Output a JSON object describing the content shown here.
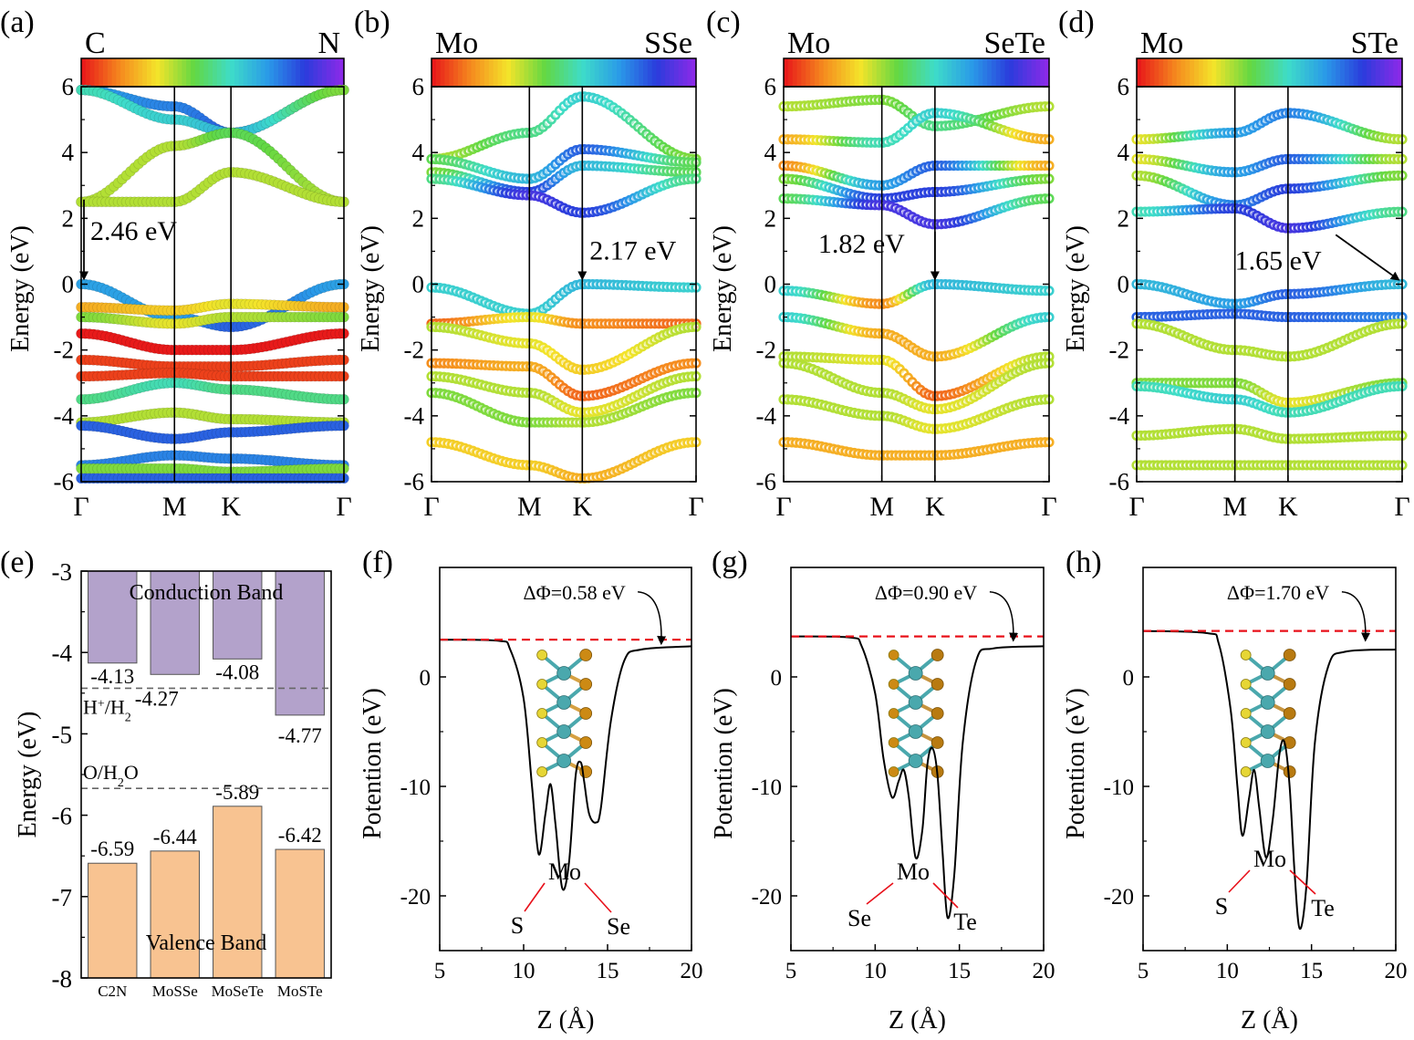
{
  "colors": {
    "axis": "#000000",
    "conduction_bar": "#b3a2cb",
    "valence_bar": "#f8c391",
    "reference_line": "#666666",
    "vacuum_line": "#e8101a",
    "atom_label": "#e8101a",
    "curve": "#000000",
    "mo_atom": "#4aa8ad",
    "s_atom": "#e6d635",
    "se_atom": "#cc8a14",
    "te_atom": "#b87a10"
  },
  "colorbar_stops": [
    "#e81a1a",
    "#f58a1e",
    "#f4e42a",
    "#62d843",
    "#3edcc9",
    "#2a9ae8",
    "#2a3cdc",
    "#8a2ae8"
  ],
  "band_panels": [
    {
      "panel_label": "(a)",
      "colorbar_left": "C",
      "colorbar_right": "N",
      "ylabel": "Energy (eV)",
      "ylim": [
        -6,
        6
      ],
      "yticks": [
        "6",
        "4",
        "2",
        "0",
        "-2",
        "-4",
        "-6"
      ],
      "kpoints": [
        "Γ",
        "M",
        "K",
        "Γ"
      ],
      "kpos": [
        0,
        0.355,
        0.57,
        1.0
      ],
      "gap_label": "2.46 eV",
      "gap_eV": 2.46,
      "marker_style": "filled",
      "bands": [
        {
          "e": [
            5.9,
            5.4,
            4.6,
            5.9
          ],
          "c": [
            0.7,
            0.75,
            0.8,
            0.4
          ]
        },
        {
          "e": [
            5.9,
            5.0,
            4.6,
            5.9
          ],
          "c": [
            0.55,
            0.6,
            0.65,
            0.4
          ]
        },
        {
          "e": [
            2.5,
            4.2,
            4.6,
            2.5
          ],
          "c": [
            0.35,
            0.35,
            0.45,
            0.35
          ]
        },
        {
          "e": [
            2.5,
            2.5,
            3.4,
            2.5
          ],
          "c": [
            0.35,
            0.35,
            0.35,
            0.35
          ]
        },
        {
          "e": [
            0.0,
            -1.0,
            -1.3,
            0.0
          ],
          "c": [
            0.7,
            0.7,
            0.8,
            0.7
          ]
        },
        {
          "e": [
            -0.7,
            -0.8,
            -0.6,
            -0.7
          ],
          "c": [
            0.2,
            0.25,
            0.3,
            0.2
          ]
        },
        {
          "e": [
            -1.0,
            -1.2,
            -1.0,
            -1.0
          ],
          "c": [
            0.4,
            0.3,
            0.35,
            0.4
          ]
        },
        {
          "e": [
            -1.5,
            -2.0,
            -2.0,
            -1.5
          ],
          "c": [
            0.0,
            0.0,
            0.0,
            0.0
          ]
        },
        {
          "e": [
            -2.3,
            -2.5,
            -2.5,
            -2.3
          ],
          "c": [
            0.05,
            0.05,
            0.05,
            0.05
          ]
        },
        {
          "e": [
            -2.8,
            -2.7,
            -2.8,
            -2.8
          ],
          "c": [
            0.05,
            0.05,
            0.05,
            0.05
          ]
        },
        {
          "e": [
            -3.5,
            -3.0,
            -3.2,
            -3.5
          ],
          "c": [
            0.5,
            0.55,
            0.5,
            0.5
          ]
        },
        {
          "e": [
            -4.2,
            -3.9,
            -4.1,
            -4.2
          ],
          "c": [
            0.35,
            0.35,
            0.35,
            0.35
          ]
        },
        {
          "e": [
            -4.3,
            -4.7,
            -4.5,
            -4.3
          ],
          "c": [
            0.8,
            0.8,
            0.8,
            0.8
          ]
        },
        {
          "e": [
            -5.5,
            -5.2,
            -5.3,
            -5.5
          ],
          "c": [
            0.75,
            0.75,
            0.75,
            0.75
          ]
        },
        {
          "e": [
            -5.6,
            -5.6,
            -5.7,
            -5.6
          ],
          "c": [
            0.4,
            0.4,
            0.4,
            0.4
          ]
        },
        {
          "e": [
            -5.9,
            -5.9,
            -5.9,
            -5.9
          ],
          "c": [
            0.8,
            0.8,
            0.8,
            0.8
          ]
        }
      ]
    },
    {
      "panel_label": "(b)",
      "colorbar_left": "Mo",
      "colorbar_right": "SSe",
      "ylabel": "Energy (eV)",
      "ylim": [
        -6,
        6
      ],
      "yticks": [
        "6",
        "4",
        "2",
        "0",
        "-2",
        "-4",
        "-6"
      ],
      "kpoints": [
        "Γ",
        "M",
        "K",
        "Γ"
      ],
      "kpos": [
        0,
        0.37,
        0.57,
        1.0
      ],
      "gap_label": "2.17 eV",
      "gap_eV": 2.17,
      "marker_style": "ring",
      "bands": [
        {
          "e": [
            3.8,
            4.6,
            5.7,
            3.8
          ],
          "c": [
            0.35,
            0.5,
            0.6,
            0.4
          ]
        },
        {
          "e": [
            3.8,
            3.2,
            4.1,
            3.7
          ],
          "c": [
            0.45,
            0.65,
            0.8,
            0.45
          ]
        },
        {
          "e": [
            3.4,
            2.8,
            3.6,
            3.4
          ],
          "c": [
            0.4,
            0.85,
            0.65,
            0.45
          ]
        },
        {
          "e": [
            3.2,
            2.7,
            2.17,
            3.2
          ],
          "c": [
            0.5,
            0.9,
            0.85,
            0.5
          ]
        },
        {
          "e": [
            -0.1,
            -0.9,
            0.0,
            -0.1
          ],
          "c": [
            0.6,
            0.6,
            0.65,
            0.6
          ]
        },
        {
          "e": [
            -1.2,
            -1.0,
            -1.2,
            -1.2
          ],
          "c": [
            0.1,
            0.3,
            0.15,
            0.1
          ]
        },
        {
          "e": [
            -1.3,
            -1.8,
            -2.6,
            -1.3
          ],
          "c": [
            0.35,
            0.3,
            0.25,
            0.35
          ]
        },
        {
          "e": [
            -2.4,
            -2.5,
            -3.4,
            -2.4
          ],
          "c": [
            0.15,
            0.2,
            0.1,
            0.15
          ]
        },
        {
          "e": [
            -2.8,
            -3.3,
            -3.9,
            -2.8
          ],
          "c": [
            0.35,
            0.35,
            0.3,
            0.35
          ]
        },
        {
          "e": [
            -3.3,
            -4.2,
            -4.2,
            -3.3
          ],
          "c": [
            0.4,
            0.4,
            0.35,
            0.4
          ]
        },
        {
          "e": [
            -4.8,
            -5.5,
            -5.9,
            -4.8
          ],
          "c": [
            0.25,
            0.25,
            0.2,
            0.25
          ]
        }
      ]
    },
    {
      "panel_label": "(c)",
      "colorbar_left": "Mo",
      "colorbar_right": "SeTe",
      "ylabel": "Energy (eV)",
      "ylim": [
        -6,
        6
      ],
      "yticks": [
        "6",
        "4",
        "2",
        "0",
        "-2",
        "-4",
        "-6"
      ],
      "kpoints": [
        "Γ",
        "M",
        "K",
        "Γ"
      ],
      "kpos": [
        0,
        0.37,
        0.57,
        1.0
      ],
      "gap_label": "1.82 eV",
      "gap_eV": 1.82,
      "marker_style": "ring",
      "bands": [
        {
          "e": [
            5.4,
            5.6,
            4.8,
            5.4
          ],
          "c": [
            0.35,
            0.4,
            0.5,
            0.35
          ]
        },
        {
          "e": [
            4.4,
            4.3,
            5.2,
            4.4
          ],
          "c": [
            0.2,
            0.55,
            0.6,
            0.2
          ]
        },
        {
          "e": [
            3.6,
            3.0,
            3.6,
            3.6
          ],
          "c": [
            0.15,
            0.7,
            0.8,
            0.2
          ]
        },
        {
          "e": [
            3.2,
            2.6,
            2.8,
            3.2
          ],
          "c": [
            0.4,
            0.85,
            0.85,
            0.4
          ]
        },
        {
          "e": [
            2.6,
            2.4,
            1.82,
            2.6
          ],
          "c": [
            0.45,
            0.9,
            0.9,
            0.45
          ]
        },
        {
          "e": [
            -0.2,
            -0.6,
            0.0,
            -0.2
          ],
          "c": [
            0.6,
            0.15,
            0.65,
            0.6
          ]
        },
        {
          "e": [
            -1.0,
            -1.5,
            -2.2,
            -1.0
          ],
          "c": [
            0.6,
            0.2,
            0.2,
            0.6
          ]
        },
        {
          "e": [
            -2.2,
            -2.3,
            -3.4,
            -2.2
          ],
          "c": [
            0.35,
            0.3,
            0.1,
            0.35
          ]
        },
        {
          "e": [
            -2.4,
            -3.3,
            -3.8,
            -2.4
          ],
          "c": [
            0.35,
            0.35,
            0.3,
            0.35
          ]
        },
        {
          "e": [
            -3.5,
            -4.0,
            -4.4,
            -3.5
          ],
          "c": [
            0.35,
            0.35,
            0.3,
            0.35
          ]
        },
        {
          "e": [
            -4.8,
            -5.2,
            -5.2,
            -4.8
          ],
          "c": [
            0.2,
            0.2,
            0.2,
            0.2
          ]
        }
      ]
    },
    {
      "panel_label": "(d)",
      "colorbar_left": "Mo",
      "colorbar_right": "STe",
      "ylabel": "Energy (eV)",
      "ylim": [
        -6,
        6
      ],
      "yticks": [
        "6",
        "4",
        "2",
        "0",
        "-2",
        "-4",
        "-6"
      ],
      "kpoints": [
        "Γ",
        "M",
        "K",
        "Γ"
      ],
      "kpos": [
        0,
        0.37,
        0.57,
        1.0
      ],
      "gap_label": "1.65 eV",
      "gap_eV": 1.65,
      "marker_style": "ring",
      "bands": [
        {
          "e": [
            4.4,
            4.6,
            5.2,
            4.4
          ],
          "c": [
            0.3,
            0.7,
            0.75,
            0.35
          ]
        },
        {
          "e": [
            3.8,
            3.4,
            3.8,
            3.8
          ],
          "c": [
            0.3,
            0.7,
            0.8,
            0.35
          ]
        },
        {
          "e": [
            3.3,
            2.4,
            2.9,
            3.3
          ],
          "c": [
            0.35,
            0.75,
            0.85,
            0.4
          ]
        },
        {
          "e": [
            2.2,
            2.3,
            1.7,
            2.2
          ],
          "c": [
            0.55,
            0.85,
            0.9,
            0.5
          ]
        },
        {
          "e": [
            0.0,
            -0.6,
            -0.3,
            0.0
          ],
          "c": [
            0.65,
            0.7,
            0.8,
            0.65
          ]
        },
        {
          "e": [
            -1.0,
            -0.9,
            -1.0,
            -1.0
          ],
          "c": [
            0.8,
            0.8,
            0.8,
            0.75
          ]
        },
        {
          "e": [
            -1.2,
            -2.0,
            -2.2,
            -1.2
          ],
          "c": [
            0.35,
            0.35,
            0.35,
            0.35
          ]
        },
        {
          "e": [
            -3.0,
            -3.0,
            -3.6,
            -3.0
          ],
          "c": [
            0.4,
            0.4,
            0.3,
            0.4
          ]
        },
        {
          "e": [
            -3.1,
            -3.5,
            -3.9,
            -3.1
          ],
          "c": [
            0.55,
            0.6,
            0.55,
            0.55
          ]
        },
        {
          "e": [
            -4.6,
            -4.4,
            -4.7,
            -4.6
          ],
          "c": [
            0.35,
            0.35,
            0.35,
            0.35
          ]
        },
        {
          "e": [
            -5.5,
            -5.5,
            -5.5,
            -5.5
          ],
          "c": [
            0.35,
            0.35,
            0.35,
            0.35
          ]
        }
      ]
    }
  ],
  "chart_data": [
    {
      "type": "bar",
      "panel_label": "(e)",
      "categories": [
        "C2N",
        "MoSSe",
        "MoSeTe",
        "MoSTe"
      ],
      "ylabel": "Energy (eV)",
      "ylim": [
        -8,
        -3
      ],
      "yticks": [
        "-3",
        "-4",
        "-5",
        "-6",
        "-7",
        "-8"
      ],
      "series": [
        {
          "name": "Conduction Band",
          "values": [
            -4.13,
            -4.27,
            -4.08,
            -4.77
          ],
          "labels": [
            "-4.13",
            "-4.27",
            "-4.08",
            "-4.77"
          ]
        },
        {
          "name": "Valence Band",
          "values": [
            -6.59,
            -6.44,
            -5.89,
            -6.42
          ],
          "labels": [
            "-6.59",
            "-6.44",
            "-5.89",
            "-6.42"
          ]
        }
      ],
      "reference_lines": [
        {
          "label": "H⁺/H₂",
          "label_main": "H",
          "label_sup": "+",
          "label_tail": "/H",
          "label_sub": "2",
          "value": -4.44
        },
        {
          "label": "O/H₂O",
          "label_main": "O/H",
          "label_sub": "2",
          "label_tail": "O",
          "value": -5.67
        }
      ]
    },
    {
      "type": "line",
      "panel_label": "(f)",
      "xlabel": "Z (Å)",
      "ylabel": "Potention (eV)",
      "xlim": [
        5,
        20
      ],
      "ylim": [
        -25,
        10
      ],
      "xticks": [
        "5",
        "10",
        "15",
        "20"
      ],
      "yticks": [
        "0",
        "-10",
        "-20"
      ],
      "annotation": "ΔΦ=0.58 eV",
      "vacuum_level": 3.4,
      "atom_labels": {
        "top": "Mo",
        "left": "S",
        "right": "Se"
      },
      "structure": "MoSSe",
      "series": [
        {
          "x": [
            5,
            8.5,
            9.2,
            10.0,
            10.5,
            10.9,
            11.3,
            11.6,
            11.9,
            12.3,
            12.7,
            13.1,
            13.4,
            13.6,
            13.9,
            14.3,
            14.6,
            15.2,
            16.0,
            17.0,
            20
          ],
          "y": [
            3.4,
            3.3,
            2.5,
            -2.0,
            -10.0,
            -16.2,
            -12.5,
            -9.8,
            -13.5,
            -19.3,
            -17.0,
            -9.0,
            -7.8,
            -9.5,
            -12.5,
            -13.3,
            -12.0,
            -4.0,
            1.5,
            2.5,
            2.8
          ]
        }
      ]
    },
    {
      "type": "line",
      "panel_label": "(g)",
      "xlabel": "Z (Å)",
      "ylabel": "Potention (eV)",
      "xlim": [
        5,
        20
      ],
      "ylim": [
        -25,
        10
      ],
      "xticks": [
        "5",
        "10",
        "15",
        "20"
      ],
      "yticks": [
        "0",
        "-10",
        "-20"
      ],
      "annotation": "ΔΦ=0.90 eV",
      "vacuum_level": 3.7,
      "atom_labels": {
        "top": "Mo",
        "left": "Se",
        "right": "Te"
      },
      "structure": "MoSeTe",
      "series": [
        {
          "x": [
            5,
            8.5,
            9.2,
            10.0,
            10.5,
            11.0,
            11.4,
            11.7,
            12.0,
            12.4,
            12.8,
            13.1,
            13.4,
            13.7,
            14.0,
            14.3,
            14.7,
            15.2,
            16.0,
            17.0,
            20
          ],
          "y": [
            3.7,
            3.6,
            2.8,
            -1.5,
            -7.5,
            -11.0,
            -9.5,
            -8.5,
            -11.0,
            -16.5,
            -14.0,
            -8.0,
            -6.5,
            -9.0,
            -16.0,
            -22.0,
            -18.0,
            -6.0,
            1.5,
            2.6,
            2.8
          ]
        }
      ]
    },
    {
      "type": "line",
      "panel_label": "(h)",
      "xlabel": "Z (Å)",
      "ylabel": "Potention (eV)",
      "xlim": [
        5,
        20
      ],
      "ylim": [
        -25,
        10
      ],
      "xticks": [
        "5",
        "10",
        "15",
        "20"
      ],
      "yticks": [
        "0",
        "-10",
        "-20"
      ],
      "annotation": "ΔΦ=1.70 eV",
      "vacuum_level": 4.2,
      "atom_labels": {
        "top": "Mo",
        "left": "S",
        "right": "Te"
      },
      "structure": "MoSTe",
      "series": [
        {
          "x": [
            5,
            8.8,
            9.5,
            10.2,
            10.6,
            10.9,
            11.3,
            11.6,
            11.9,
            12.3,
            12.7,
            13.1,
            13.4,
            13.7,
            14.0,
            14.3,
            14.7,
            15.2,
            16.0,
            17.0,
            20
          ],
          "y": [
            4.2,
            4.0,
            3.0,
            -3.0,
            -10.0,
            -14.5,
            -11.0,
            -8.5,
            -12.0,
            -16.5,
            -13.0,
            -7.0,
            -6.0,
            -10.0,
            -18.0,
            -23.0,
            -19.0,
            -6.0,
            1.0,
            2.3,
            2.5
          ]
        }
      ]
    }
  ]
}
